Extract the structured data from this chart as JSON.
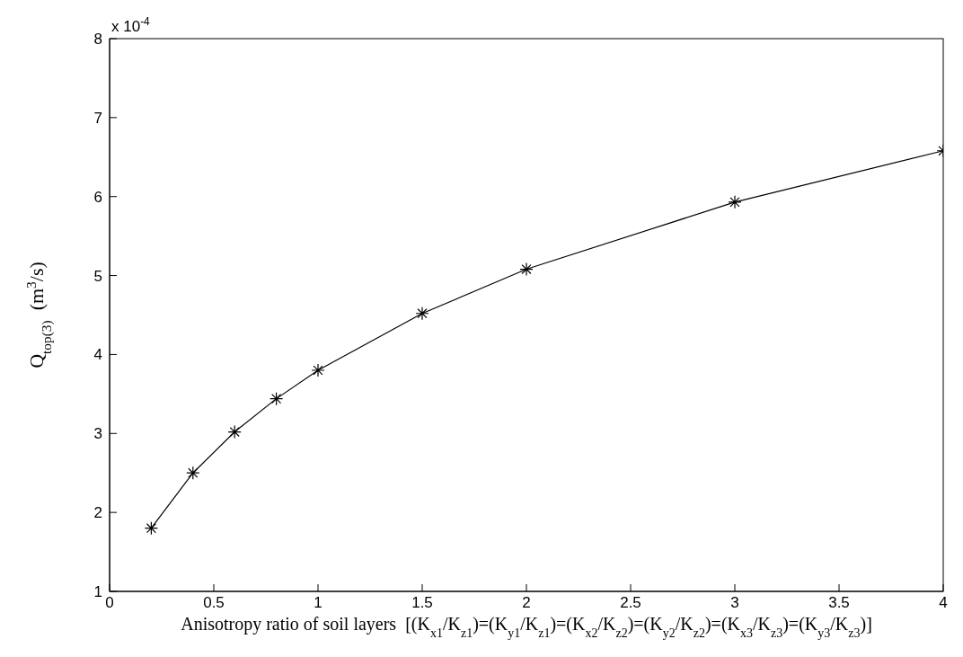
{
  "chart_data": {
    "type": "line",
    "xlabel": "Anisotropy ratio of soil layers  [(K$_{x1}$/K$_{z1}$)=(K$_{y1}$/K$_{z1}$)=(K$_{x2}$/K$_{z2}$)=(K$_{y2}$/K$_{z2}$)=(K$_{x3}$/K$_{z3}$)=(K$_{y3}$/K$_{z3}$)]",
    "ylabel": "Q$_{top(3)}$  (m$^{3}$/s)",
    "annotations": [
      "x 10$^{-4}$"
    ],
    "x": [
      0.2,
      0.4,
      0.6,
      0.8,
      1,
      1.5,
      2,
      3,
      4
    ],
    "series": [
      {
        "color": "#000000",
        "values": [
          1.8,
          2.5,
          3.02,
          3.44,
          3.8,
          4.52,
          5.08,
          5.93,
          6.58
        ]
      }
    ],
    "xlim": [
      0,
      4
    ],
    "xticks": [
      0,
      0.5,
      1,
      1.5,
      2,
      2.5,
      3,
      3.5,
      4
    ],
    "ylim": [
      1,
      8
    ],
    "yticks": [
      1,
      2,
      3,
      4,
      5,
      6,
      7,
      8
    ],
    "grid": false,
    "legend": false,
    "marker": "cross",
    "line_style": "solid"
  }
}
